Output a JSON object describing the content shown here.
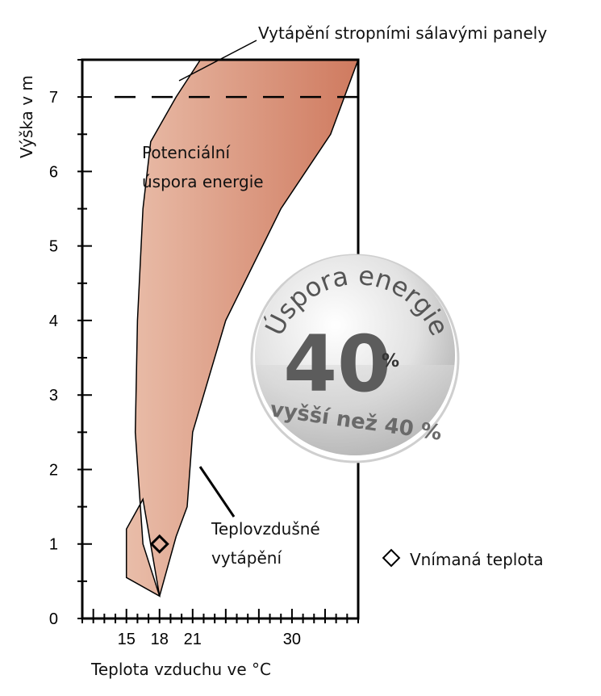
{
  "chart_data": {
    "type": "area",
    "xlabel": "Teplota vzduchu ve °C",
    "ylabel": "Výška v m",
    "xlim": [
      11,
      36
    ],
    "ylim": [
      0,
      7.5
    ],
    "x_ticks": [
      15,
      18,
      21,
      30
    ],
    "y_ticks": [
      0,
      1,
      2,
      3,
      4,
      5,
      6,
      7
    ],
    "reference_line_y": 7,
    "series": [
      {
        "name": "Vytápění stropními sálavými panely",
        "points": [
          [
            18,
            0.3
          ],
          [
            16.5,
            1
          ],
          [
            15.8,
            2.5
          ],
          [
            16,
            4
          ],
          [
            16.5,
            5.5
          ],
          [
            17.2,
            6.4
          ],
          [
            19.5,
            7
          ],
          [
            21.7,
            7.5
          ]
        ]
      },
      {
        "name": "Teplovzdušné vytápění",
        "points": [
          [
            15,
            0.55
          ],
          [
            15,
            1.2
          ],
          [
            16.5,
            1.6
          ],
          [
            18,
            0.3
          ],
          [
            19.5,
            1.1
          ],
          [
            20.5,
            1.5
          ],
          [
            21,
            2.5
          ],
          [
            24,
            4
          ],
          [
            29,
            5.5
          ],
          [
            33.5,
            6.5
          ],
          [
            36,
            7.5
          ]
        ]
      }
    ],
    "marker": {
      "name": "Vnímaná teplota",
      "x": 18,
      "y": 1
    },
    "colors": {
      "fill_light": "#e8b8a3",
      "fill_dark": "#cf7a5f",
      "outline": "#000000"
    }
  },
  "labels": {
    "top_annotation": "Vytápění stropními sálavými panely",
    "area_label_line1": "Potenciální",
    "area_label_line2": "úspora energie",
    "warm_air_line1": "Teplovzdušné",
    "warm_air_line2": "vytápění",
    "legend_marker": "Vnímaná teplota"
  },
  "badge": {
    "arc_text": "Úspora energie",
    "value": "40",
    "unit": "%",
    "subtitle": "vyšší než 40 %"
  }
}
